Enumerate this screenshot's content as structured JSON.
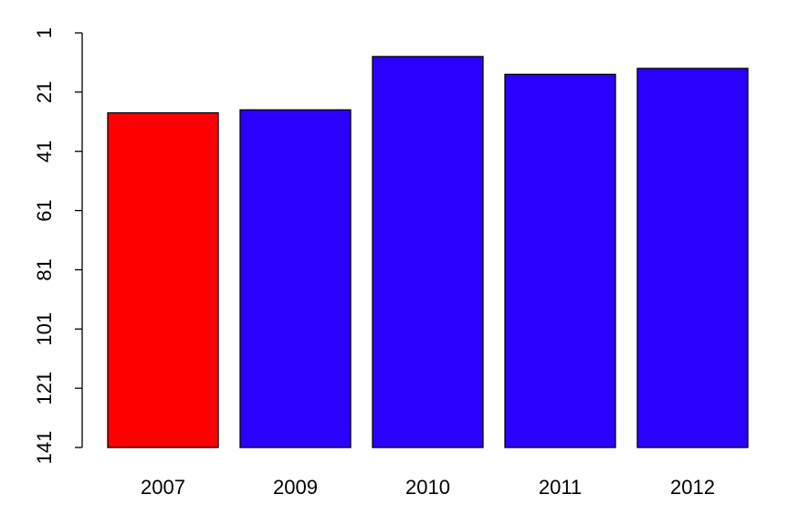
{
  "chart_data": {
    "type": "bar",
    "categories": [
      "2007",
      "2009",
      "2010",
      "2011",
      "2012"
    ],
    "values": [
      28,
      27,
      9,
      15,
      13
    ],
    "colors": [
      "#ff0000",
      "#2b00ff",
      "#2b00ff",
      "#2b00ff",
      "#2b00ff"
    ],
    "ylim": [
      1,
      141
    ],
    "y_reversed": true,
    "yticks": [
      1,
      21,
      41,
      61,
      81,
      101,
      121,
      141
    ]
  }
}
